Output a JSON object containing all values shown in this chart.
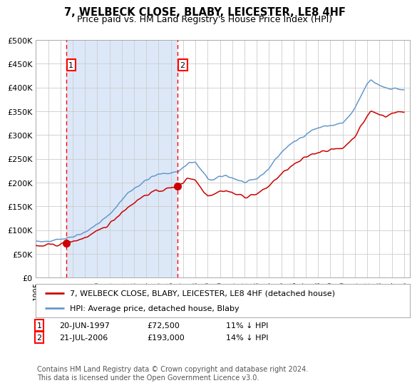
{
  "title": "7, WELBECK CLOSE, BLABY, LEICESTER, LE8 4HF",
  "subtitle": "Price paid vs. HM Land Registry's House Price Index (HPI)",
  "legend_label_red": "7, WELBECK CLOSE, BLABY, LEICESTER, LE8 4HF (detached house)",
  "legend_label_blue": "HPI: Average price, detached house, Blaby",
  "footer": "Contains HM Land Registry data © Crown copyright and database right 2024.\nThis data is licensed under the Open Government Licence v3.0.",
  "annotation1_date": "20-JUN-1997",
  "annotation1_price": "£72,500",
  "annotation1_hpi": "11% ↓ HPI",
  "annotation2_date": "21-JUL-2006",
  "annotation2_price": "£193,000",
  "annotation2_hpi": "14% ↓ HPI",
  "xmin": 1995.0,
  "xmax": 2025.5,
  "ymin": 0,
  "ymax": 500000,
  "yticks": [
    0,
    50000,
    100000,
    150000,
    200000,
    250000,
    300000,
    350000,
    400000,
    450000,
    500000
  ],
  "ytick_labels": [
    "£0",
    "£50K",
    "£100K",
    "£150K",
    "£200K",
    "£250K",
    "£300K",
    "£350K",
    "£400K",
    "£450K",
    "£500K"
  ],
  "xticks": [
    1995,
    1996,
    1997,
    1998,
    1999,
    2000,
    2001,
    2002,
    2003,
    2004,
    2005,
    2006,
    2007,
    2008,
    2009,
    2010,
    2011,
    2012,
    2013,
    2014,
    2015,
    2016,
    2017,
    2018,
    2019,
    2020,
    2021,
    2022,
    2023,
    2024,
    2025
  ],
  "sale1_x": 1997.47,
  "sale1_y": 72500,
  "sale2_x": 2006.55,
  "sale2_y": 193000,
  "vline1_x": 1997.47,
  "vline2_x": 2006.55,
  "plot_bg_color": "#ffffff",
  "shade_color": "#dce8f8",
  "grid_color": "#cccccc",
  "hpi_color": "#6699cc",
  "price_color": "#cc0000",
  "title_fontsize": 10.5,
  "subtitle_fontsize": 9,
  "fig_bg": "#ffffff"
}
